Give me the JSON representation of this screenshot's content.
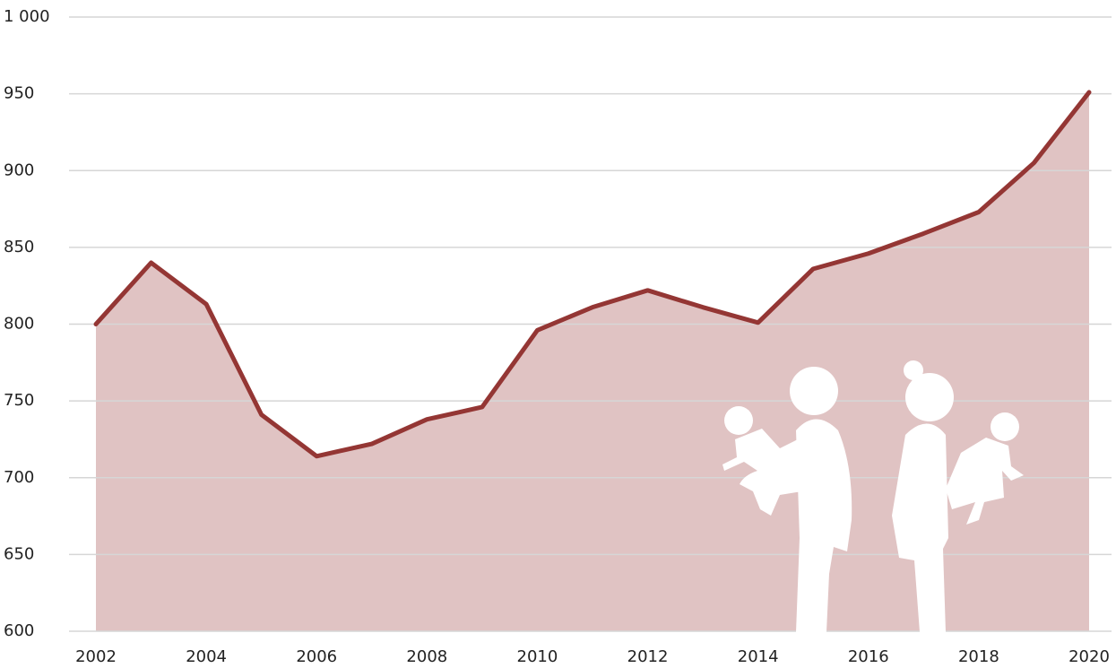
{
  "chart_data": {
    "type": "line",
    "x": [
      2002,
      2003,
      2004,
      2005,
      2006,
      2007,
      2008,
      2009,
      2010,
      2011,
      2012,
      2013,
      2014,
      2015,
      2016,
      2017,
      2018,
      2019,
      2020
    ],
    "series": [
      {
        "name": "Births",
        "color": "#943634",
        "fill": "#e0c3c3",
        "values": [
          800,
          840,
          813,
          741,
          714,
          722,
          738,
          746,
          796,
          811,
          822,
          811,
          801,
          836,
          846,
          859,
          873,
          905,
          951
        ]
      }
    ],
    "xlim": [
      2002,
      2020
    ],
    "xticks": [
      2002,
      2004,
      2006,
      2008,
      2010,
      2012,
      2014,
      2016,
      2018,
      2020
    ],
    "ylim": [
      600,
      1000
    ],
    "yticks": [
      600,
      650,
      700,
      750,
      800,
      850,
      900,
      950,
      {
        "value": 1000,
        "label": "1 000"
      }
    ],
    "grid": true
  }
}
